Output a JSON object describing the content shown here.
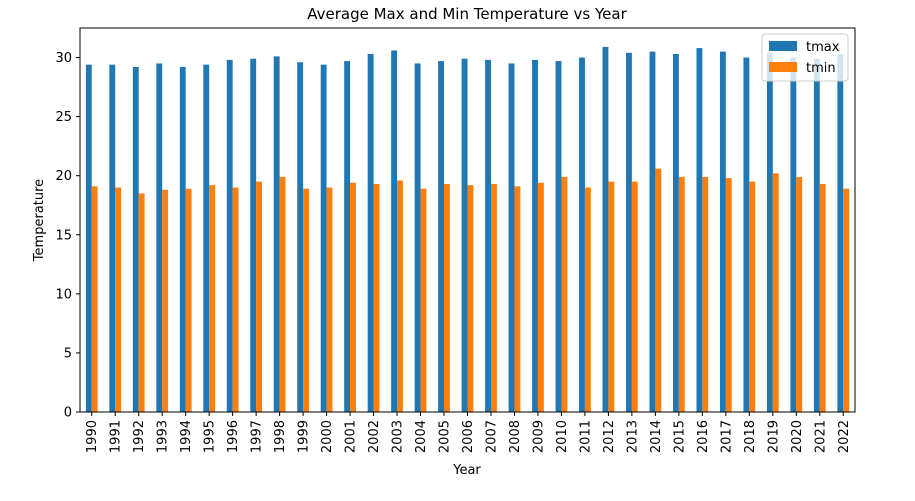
{
  "chart_data": {
    "type": "bar",
    "title": "Average Max and Min Temperature vs Year",
    "xlabel": "Year",
    "ylabel": "Temperature",
    "ylim": [
      0,
      32.5
    ],
    "yticks": [
      0,
      5,
      10,
      15,
      20,
      25,
      30
    ],
    "grid": false,
    "legend_position": "top-right",
    "categories": [
      "1990",
      "1991",
      "1992",
      "1993",
      "1994",
      "1995",
      "1996",
      "1997",
      "1998",
      "1999",
      "2000",
      "2001",
      "2002",
      "2003",
      "2004",
      "2005",
      "2006",
      "2007",
      "2008",
      "2009",
      "2010",
      "2011",
      "2012",
      "2013",
      "2014",
      "2015",
      "2016",
      "2017",
      "2018",
      "2019",
      "2020",
      "2021",
      "2022"
    ],
    "series": [
      {
        "name": "tmax",
        "color": "#1f77b4",
        "values": [
          29.4,
          29.4,
          29.2,
          29.5,
          29.2,
          29.4,
          29.8,
          29.9,
          30.1,
          29.6,
          29.4,
          29.7,
          30.3,
          30.6,
          29.5,
          29.7,
          29.9,
          29.8,
          29.5,
          29.8,
          29.7,
          30.0,
          30.9,
          30.4,
          30.5,
          30.3,
          30.8,
          30.5,
          30.0,
          30.4,
          30.0,
          29.9,
          30.3
        ]
      },
      {
        "name": "tmin",
        "color": "#ff7f0e",
        "values": [
          19.1,
          19.0,
          18.5,
          18.8,
          18.9,
          19.2,
          19.0,
          19.5,
          19.9,
          18.9,
          19.0,
          19.4,
          19.3,
          19.6,
          18.9,
          19.3,
          19.2,
          19.3,
          19.1,
          19.4,
          19.9,
          19.0,
          19.5,
          19.5,
          20.6,
          19.9,
          19.9,
          19.8,
          19.5,
          20.2,
          19.9,
          19.3,
          18.9
        ]
      }
    ]
  }
}
